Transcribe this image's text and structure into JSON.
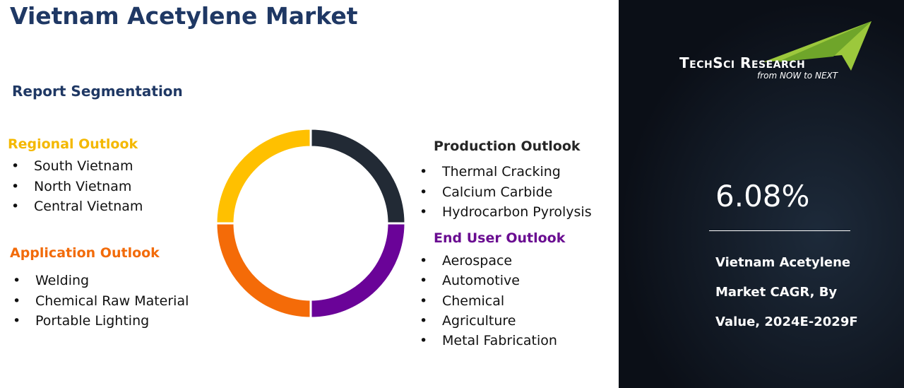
{
  "header": {
    "title": "Vietnam Acetylene Market",
    "subtitle": "Report Segmentation"
  },
  "segments": [
    {
      "heading": "Regional Outlook",
      "items": [
        "South Vietnam",
        "North Vietnam",
        "Central Vietnam"
      ]
    },
    {
      "heading": "Application Outlook",
      "items": [
        "Welding",
        "Chemical Raw Material",
        "Portable Lighting"
      ]
    },
    {
      "heading": "Production Outlook",
      "items": [
        "Thermal Cracking",
        "Calcium Carbide",
        "Hydrocarbon Pyrolysis"
      ]
    },
    {
      "heading": "End User Outlook",
      "items": [
        "Aerospace",
        "Automotive",
        "Chemical",
        "Agriculture",
        "Metal Fabrication"
      ]
    }
  ],
  "logo": {
    "name": "TechSci Research",
    "tagline": "from NOW to NEXT"
  },
  "stat": {
    "value": "6.08%",
    "description": [
      "Vietnam Acetylene",
      "Market CAGR, By",
      "Value, 2024E-2029F"
    ]
  }
}
